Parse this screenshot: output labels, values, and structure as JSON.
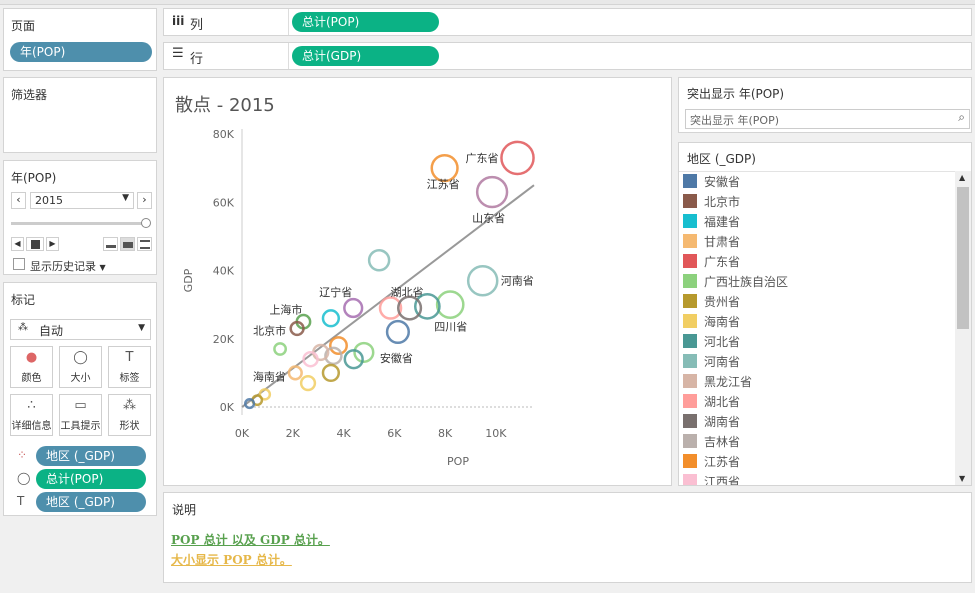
{
  "pages_shelf": {
    "title": "页面",
    "pill": "年(POP)"
  },
  "filters": {
    "title": "筛选器"
  },
  "year_control": {
    "title": "年(POP)",
    "value": "2015",
    "history_label": "显示历史记录"
  },
  "marks": {
    "title": "标记",
    "mark_type": "自动",
    "buttons": [
      {
        "label": "颜色",
        "icon": "color-icon"
      },
      {
        "label": "大小",
        "icon": "size-icon"
      },
      {
        "label": "标签",
        "icon": "label-icon"
      },
      {
        "label": "详细信息",
        "icon": "detail-icon"
      },
      {
        "label": "工具提示",
        "icon": "tooltip-icon"
      },
      {
        "label": "形状",
        "icon": "shape-icon"
      }
    ],
    "fields": [
      {
        "label": "地区 (_GDP)",
        "color": "blue",
        "icon": "color-dots-icon"
      },
      {
        "label": "总计(POP)",
        "color": "green",
        "icon": "size-icon"
      },
      {
        "label": "地区 (_GDP)",
        "color": "blue",
        "icon": "text-icon"
      }
    ]
  },
  "columns_shelf": {
    "label": "列",
    "pill": "总计(POP)"
  },
  "rows_shelf": {
    "label": "行",
    "pill": "总计(GDP)"
  },
  "chart_title": "散点 - 2015",
  "highlight": {
    "title": "突出显示 年(POP)",
    "placeholder": "突出显示 年(POP)"
  },
  "legend": {
    "title": "地区 (_GDP)",
    "items": [
      {
        "name": "安徽省",
        "color": "#4e79a7"
      },
      {
        "name": "北京市",
        "color": "#8a5a4a"
      },
      {
        "name": "福建省",
        "color": "#17becf"
      },
      {
        "name": "甘肃省",
        "color": "#f5b971"
      },
      {
        "name": "广东省",
        "color": "#e15759"
      },
      {
        "name": "广西壮族自治区",
        "color": "#8cd17d"
      },
      {
        "name": "贵州省",
        "color": "#b6992d"
      },
      {
        "name": "海南省",
        "color": "#f1ce63"
      },
      {
        "name": "河北省",
        "color": "#499894"
      },
      {
        "name": "河南省",
        "color": "#86bcb6"
      },
      {
        "name": "黑龙江省",
        "color": "#d7b5a6"
      },
      {
        "name": "湖北省",
        "color": "#ff9d9a"
      },
      {
        "name": "湖南省",
        "color": "#79706e"
      },
      {
        "name": "吉林省",
        "color": "#bab0ac"
      },
      {
        "name": "江苏省",
        "color": "#f28e2b"
      },
      {
        "name": "江西省",
        "color": "#fabfd2"
      }
    ]
  },
  "caption": {
    "title": "说明",
    "line1": "POP 总计 以及 GDP 总计。",
    "line2": "大小显示 POP 总计。"
  },
  "chart_data": {
    "type": "scatter",
    "xlabel": "POP",
    "ylabel": "GDP",
    "xlim": [
      0,
      11500
    ],
    "ylim": [
      0,
      80000
    ],
    "xticks": [
      "0K",
      "2K",
      "4K",
      "6K",
      "8K",
      "10K"
    ],
    "yticks": [
      "0K",
      "20K",
      "40K",
      "60K",
      "80K"
    ],
    "trend_line": {
      "x": [
        0,
        11500
      ],
      "y": [
        0,
        65000
      ]
    },
    "points": [
      {
        "label": "广东省",
        "x": 10850,
        "y": 73000,
        "size": 10850,
        "color": "#e15759"
      },
      {
        "label": "江苏省",
        "x": 7980,
        "y": 70000,
        "size": 7980,
        "color": "#f28e2b"
      },
      {
        "label": "山东省",
        "x": 9850,
        "y": 63000,
        "size": 9850,
        "color": "#b07aa1"
      },
      {
        "label": "河南省",
        "x": 9480,
        "y": 37000,
        "size": 9480,
        "color": "#86bcb6"
      },
      {
        "label": "湖北省",
        "x": 5850,
        "y": 29000,
        "size": 5850,
        "color": "#ff9d9a"
      },
      {
        "label": "四川省",
        "x": 8200,
        "y": 30000,
        "size": 8200,
        "color": "#8cd17d"
      },
      {
        "label": "",
        "x": 7300,
        "y": 29500,
        "size": 7300,
        "color": "#499894"
      },
      {
        "label": "",
        "x": 6600,
        "y": 29000,
        "size": 6600,
        "color": "#79706e"
      },
      {
        "label": "",
        "x": 5400,
        "y": 43000,
        "size": 5400,
        "color": "#86bcb6"
      },
      {
        "label": "辽宁省",
        "x": 4380,
        "y": 29000,
        "size": 4380,
        "color": "#a66db0"
      },
      {
        "label": "",
        "x": 3500,
        "y": 26000,
        "size": 3500,
        "color": "#17becf"
      },
      {
        "label": "上海市",
        "x": 2420,
        "y": 25000,
        "size": 2420,
        "color": "#59a14f"
      },
      {
        "label": "北京市",
        "x": 2170,
        "y": 23000,
        "size": 2170,
        "color": "#8a5a4a"
      },
      {
        "label": "安徽省",
        "x": 6140,
        "y": 22000,
        "size": 6140,
        "color": "#4e79a7"
      },
      {
        "label": "",
        "x": 4800,
        "y": 16000,
        "size": 4800,
        "color": "#8cd17d"
      },
      {
        "label": "",
        "x": 4400,
        "y": 14000,
        "size": 4400,
        "color": "#499894"
      },
      {
        "label": "",
        "x": 3800,
        "y": 18000,
        "size": 3800,
        "color": "#f28e2b"
      },
      {
        "label": "",
        "x": 3600,
        "y": 15000,
        "size": 3600,
        "color": "#bab0ac"
      },
      {
        "label": "",
        "x": 3100,
        "y": 16000,
        "size": 3100,
        "color": "#d7b5a6"
      },
      {
        "label": "",
        "x": 2700,
        "y": 14000,
        "size": 2700,
        "color": "#fabfd2"
      },
      {
        "label": "",
        "x": 3500,
        "y": 10000,
        "size": 3500,
        "color": "#b6992d"
      },
      {
        "label": "",
        "x": 1500,
        "y": 17000,
        "size": 1500,
        "color": "#8cd17d"
      },
      {
        "label": "",
        "x": 2600,
        "y": 7000,
        "size": 2600,
        "color": "#f1ce63"
      },
      {
        "label": "",
        "x": 2100,
        "y": 10000,
        "size": 2100,
        "color": "#f5b971"
      },
      {
        "label": "海南省",
        "x": 900,
        "y": 3700,
        "size": 900,
        "color": "#f1ce63"
      },
      {
        "label": "",
        "x": 600,
        "y": 2000,
        "size": 600,
        "color": "#b6992d"
      },
      {
        "label": "",
        "x": 300,
        "y": 1000,
        "size": 300,
        "color": "#4e79a7"
      }
    ]
  }
}
